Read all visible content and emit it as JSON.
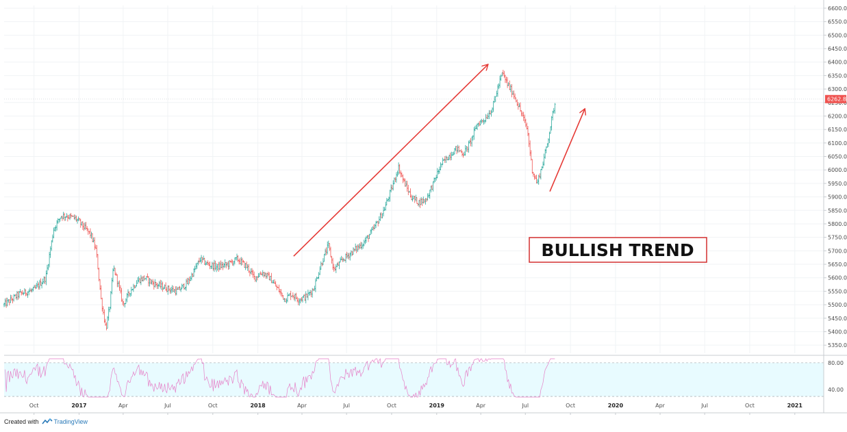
{
  "footer": {
    "created_with": "Created with",
    "brand": "TradingView"
  },
  "annotation": {
    "text": "BULLISH TREND",
    "color": "#d32f2f"
  },
  "colors": {
    "up": "#26a69a",
    "down": "#ef5350",
    "neutral": "#555555",
    "arrow": "#e53935",
    "rsi_line": "#e57fc7",
    "rsi_band": "#e8fbff",
    "price_badge": "#ef5350"
  },
  "chart_data": [
    {
      "type": "candlestick",
      "title": "",
      "ylim": [
        5320,
        6610
      ],
      "y_ticks": [
        "6600.0",
        "6550.0",
        "6500.0",
        "6450.0",
        "6400.0",
        "6350.0",
        "6300.0",
        "6250.0",
        "6200.0",
        "6150.0",
        "6100.0",
        "6050.0",
        "6000.0",
        "5950.0",
        "5900.0",
        "5850.0",
        "5800.0",
        "5750.0",
        "5700.0",
        "5650.0",
        "5600.0",
        "5550.0",
        "5500.0",
        "5450.0",
        "5400.0",
        "5350.0"
      ],
      "x_ticks": [
        "Oct",
        "2017",
        "Apr",
        "Jul",
        "Oct",
        "2018",
        "Apr",
        "Jul",
        "Oct",
        "2019",
        "Apr",
        "Jul",
        "Oct",
        "2020",
        "Apr",
        "Jul",
        "Oct",
        "2021"
      ],
      "bold_ticks": [
        "2017",
        "2018",
        "2019",
        "2020",
        "2021"
      ],
      "last_price": "6262.8",
      "path": [
        [
          "2016-08-01",
          5500
        ],
        [
          "2016-09-01",
          5540
        ],
        [
          "2016-10-01",
          5555
        ],
        [
          "2016-10-25",
          5600
        ],
        [
          "2016-11-10",
          5780
        ],
        [
          "2016-11-25",
          5830
        ],
        [
          "2016-12-05",
          5830
        ],
        [
          "2016-12-25",
          5820
        ],
        [
          "2017-01-10",
          5790
        ],
        [
          "2017-01-25",
          5760
        ],
        [
          "2017-02-05",
          5700
        ],
        [
          "2017-02-15",
          5520
        ],
        [
          "2017-02-25",
          5410
        ],
        [
          "2017-03-05",
          5500
        ],
        [
          "2017-03-12",
          5640
        ],
        [
          "2017-03-20",
          5590
        ],
        [
          "2017-04-01",
          5500
        ],
        [
          "2017-04-15",
          5550
        ],
        [
          "2017-05-01",
          5590
        ],
        [
          "2017-05-15",
          5600
        ],
        [
          "2017-06-01",
          5580
        ],
        [
          "2017-06-15",
          5570
        ],
        [
          "2017-07-01",
          5560
        ],
        [
          "2017-07-20",
          5550
        ],
        [
          "2017-08-10",
          5580
        ],
        [
          "2017-08-25",
          5630
        ],
        [
          "2017-09-05",
          5670
        ],
        [
          "2017-09-20",
          5650
        ],
        [
          "2017-10-10",
          5640
        ],
        [
          "2017-11-01",
          5650
        ],
        [
          "2017-11-20",
          5670
        ],
        [
          "2017-12-10",
          5640
        ],
        [
          "2017-12-25",
          5600
        ],
        [
          "2018-01-10",
          5620
        ],
        [
          "2018-01-25",
          5600
        ],
        [
          "2018-02-10",
          5560
        ],
        [
          "2018-02-25",
          5520
        ],
        [
          "2018-03-10",
          5540
        ],
        [
          "2018-03-25",
          5520
        ],
        [
          "2018-04-10",
          5530
        ],
        [
          "2018-04-25",
          5560
        ],
        [
          "2018-05-10",
          5650
        ],
        [
          "2018-05-25",
          5720
        ],
        [
          "2018-06-05",
          5630
        ],
        [
          "2018-06-25",
          5670
        ],
        [
          "2018-07-15",
          5700
        ],
        [
          "2018-08-05",
          5730
        ],
        [
          "2018-08-25",
          5780
        ],
        [
          "2018-09-15",
          5850
        ],
        [
          "2018-10-01",
          5930
        ],
        [
          "2018-10-15",
          6010
        ],
        [
          "2018-10-25",
          5960
        ],
        [
          "2018-11-10",
          5900
        ],
        [
          "2018-11-25",
          5880
        ],
        [
          "2018-12-10",
          5890
        ],
        [
          "2018-12-25",
          5950
        ],
        [
          "2019-01-10",
          6020
        ],
        [
          "2019-01-25",
          6050
        ],
        [
          "2019-02-10",
          6080
        ],
        [
          "2019-02-25",
          6060
        ],
        [
          "2019-03-10",
          6100
        ],
        [
          "2019-03-25",
          6170
        ],
        [
          "2019-04-10",
          6190
        ],
        [
          "2019-04-25",
          6230
        ],
        [
          "2019-05-05",
          6300
        ],
        [
          "2019-05-15",
          6360
        ],
        [
          "2019-05-25",
          6320
        ],
        [
          "2019-06-10",
          6270
        ],
        [
          "2019-06-25",
          6200
        ],
        [
          "2019-07-05",
          6150
        ],
        [
          "2019-07-15",
          6000
        ],
        [
          "2019-07-25",
          5950
        ],
        [
          "2019-08-05",
          6020
        ],
        [
          "2019-08-15",
          6100
        ],
        [
          "2019-08-25",
          6200
        ],
        [
          "2019-09-01",
          6262.8
        ]
      ],
      "series": [
        {
          "kind": "arrow",
          "from": [
            "2018-03-15",
            5680
          ],
          "to": [
            "2019-04-15",
            6390
          ]
        },
        {
          "kind": "arrow",
          "from": [
            "2019-08-20",
            5920
          ],
          "to": [
            "2019-10-30",
            6225
          ]
        }
      ]
    },
    {
      "type": "line",
      "title": "",
      "ylim": [
        27,
        88
      ],
      "y_ticks": [
        "80.00",
        "40.00"
      ],
      "band": [
        30,
        80
      ]
    }
  ]
}
